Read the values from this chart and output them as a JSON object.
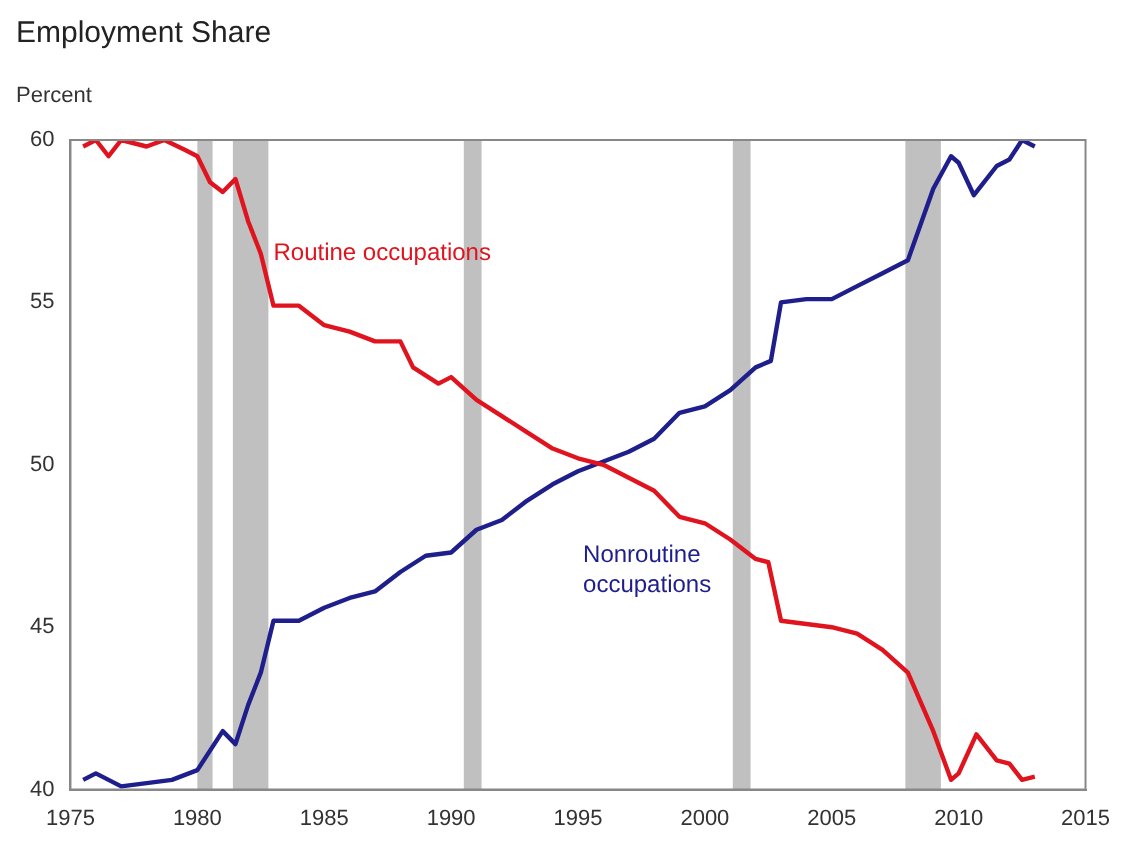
{
  "chart_data": {
    "type": "line",
    "title": "Employment Share",
    "ylabel": "Percent",
    "xlim": [
      1975,
      2015
    ],
    "xticks": [
      1975,
      1980,
      1985,
      1990,
      1995,
      2000,
      2005,
      2010,
      2015
    ],
    "ylim": [
      40,
      60
    ],
    "yticks": [
      40,
      45,
      50,
      55,
      60
    ],
    "grid": false,
    "legend": false,
    "marker": "none",
    "line_style": "solid",
    "series": [
      {
        "color": "#e0141e",
        "x": [
          1975.5,
          1976,
          1976.5,
          1977,
          1978,
          1978.7,
          1979.5,
          1980,
          1980.5,
          1981,
          1981.5,
          1982,
          1982.5,
          1983,
          1984,
          1985,
          1986,
          1987,
          1988,
          1988.5,
          1989.5,
          1990,
          1991,
          1992,
          1993,
          1994,
          1995,
          1996,
          1997,
          1998,
          1999,
          2000,
          2001,
          2002,
          2002.5,
          2003,
          2004,
          2005,
          2006,
          2007,
          2008,
          2009,
          2009.7,
          2010,
          2010.7,
          2011.5,
          2012,
          2012.5,
          2013
        ],
        "values": [
          59.8,
          60,
          59.5,
          60,
          59.8,
          60,
          59.7,
          59.5,
          58.7,
          58.4,
          58.8,
          57.5,
          56.5,
          54.9,
          54.9,
          54.3,
          54.1,
          53.8,
          53.8,
          53,
          52.5,
          52.7,
          52,
          51.5,
          51,
          50.5,
          50.2,
          50,
          49.6,
          49.2,
          48.4,
          48.2,
          47.7,
          47.1,
          47,
          45.2,
          45.1,
          45,
          44.8,
          44.3,
          43.6,
          41.8,
          40.3,
          40.5,
          41.7,
          40.9,
          40.8,
          40.3,
          40.4
        ]
      },
      {
        "color": "#1e1e8c",
        "x": [
          1975.5,
          1976,
          1977,
          1978,
          1979,
          1980,
          1980.5,
          1981,
          1981.5,
          1982,
          1982.5,
          1983,
          1984,
          1985,
          1986,
          1987,
          1988,
          1989,
          1990,
          1991,
          1992,
          1993,
          1994,
          1995,
          1996,
          1997,
          1998,
          1999,
          2000,
          2001,
          2002,
          2002.6,
          2003,
          2004,
          2005,
          2006,
          2007,
          2008,
          2009,
          2009.7,
          2010,
          2010.6,
          2011.5,
          2012,
          2012.5,
          2013
        ],
        "values": [
          40.3,
          40.5,
          40.1,
          40.2,
          40.3,
          40.6,
          41.2,
          41.8,
          41.4,
          42.6,
          43.6,
          45.2,
          45.2,
          45.6,
          45.9,
          46.1,
          46.7,
          47.2,
          47.3,
          48,
          48.3,
          48.9,
          49.4,
          49.8,
          50.1,
          50.4,
          50.8,
          51.6,
          51.8,
          52.3,
          53,
          53.2,
          55,
          55.1,
          55.1,
          55.5,
          55.9,
          56.3,
          58.5,
          59.5,
          59.3,
          58.3,
          59.2,
          59.4,
          60,
          59.8
        ]
      }
    ],
    "bands": [
      {
        "axis": "x",
        "from": 1980,
        "to": 1980.6,
        "color": "#c0c0c0"
      },
      {
        "axis": "x",
        "from": 1981.4,
        "to": 1982.8,
        "color": "#c0c0c0"
      },
      {
        "axis": "x",
        "from": 1990.5,
        "to": 1991.2,
        "color": "#c0c0c0"
      },
      {
        "axis": "x",
        "from": 2001.1,
        "to": 2001.8,
        "color": "#c0c0c0"
      },
      {
        "axis": "x",
        "from": 2007.9,
        "to": 2009.3,
        "color": "#c0c0c0"
      }
    ],
    "annotations": [
      "Routine occupations",
      "Nonroutine occupations"
    ]
  }
}
